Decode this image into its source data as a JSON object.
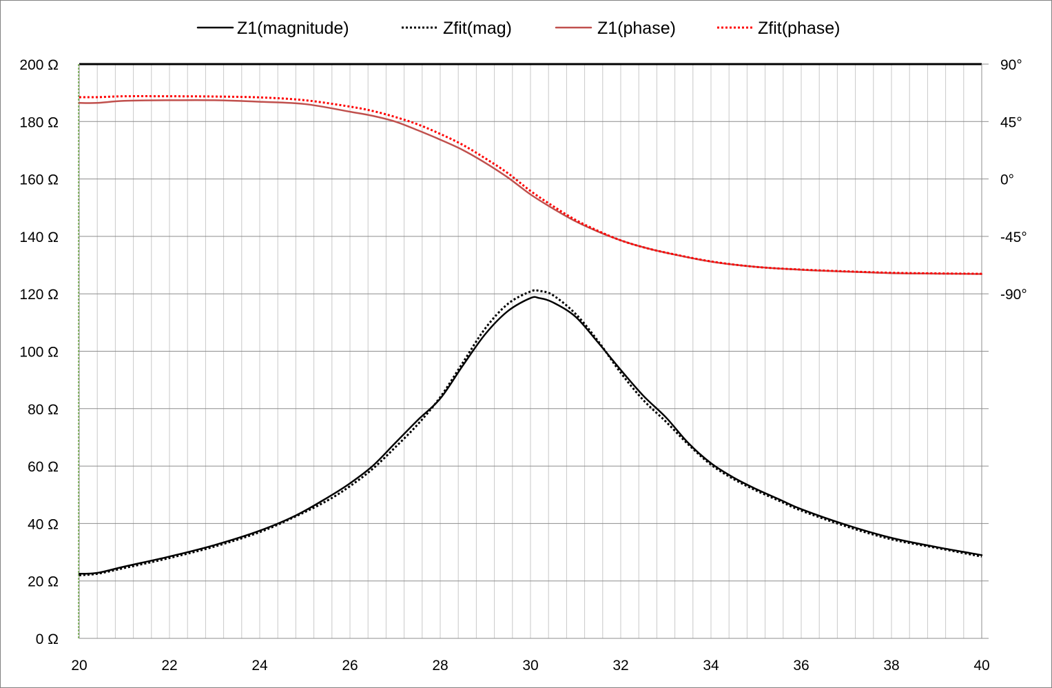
{
  "chart_data": {
    "type": "line",
    "title": "",
    "xlabel": "",
    "ylabel": "",
    "y2label": "",
    "xlim": [
      20,
      40
    ],
    "ylim": [
      0,
      200
    ],
    "y2lim": [
      -90,
      90
    ],
    "grid": true,
    "legend_position": "top",
    "x_ticks": [
      20,
      22,
      24,
      26,
      28,
      30,
      32,
      34,
      36,
      38,
      40
    ],
    "y_ticks": [
      0,
      20,
      40,
      60,
      80,
      100,
      120,
      140,
      160,
      180,
      200
    ],
    "y_tick_labels": [
      "0 Ω",
      "20 Ω",
      "40 Ω",
      "60 Ω",
      "80 Ω",
      "100 Ω",
      "120 Ω",
      "140 Ω",
      "160 Ω",
      "180 Ω",
      "200 Ω"
    ],
    "y2_ticks": [
      -90,
      -45,
      0,
      45,
      90
    ],
    "y2_tick_labels": [
      "-90°",
      "-45°",
      "0°",
      "45°",
      "90°"
    ],
    "series": [
      {
        "name": "Z1(magnitude)",
        "axis": "left",
        "color": "#000000",
        "style": "solid",
        "x": [
          20,
          20.4,
          21,
          22,
          23,
          24,
          24.8,
          25.5,
          26,
          26.5,
          27,
          27.5,
          28,
          28.5,
          29,
          29.5,
          30,
          30.2,
          30.5,
          31,
          31.5,
          32,
          32.5,
          33,
          33.5,
          34,
          34.5,
          35,
          35.5,
          36,
          37,
          38,
          39,
          40
        ],
        "y": [
          22.5,
          22.8,
          25,
          28.5,
          32.5,
          37.5,
          42.8,
          49,
          54,
          60,
          68,
          76,
          83.5,
          95,
          106,
          114,
          118.5,
          118.5,
          117,
          112,
          103,
          93.5,
          84.5,
          77,
          68,
          61,
          56,
          52,
          48.5,
          45,
          39.5,
          35,
          31.8,
          29
        ]
      },
      {
        "name": "Zfit(mag)",
        "axis": "left",
        "color": "#000000",
        "style": "dotted",
        "x": [
          20,
          20.4,
          21,
          22,
          23,
          24,
          24.8,
          25.5,
          26,
          26.5,
          27,
          27.5,
          28,
          28.5,
          29,
          29.5,
          30,
          30.2,
          30.5,
          31,
          31.5,
          32,
          32.5,
          33,
          33.5,
          34,
          34.5,
          35,
          35.5,
          36,
          37,
          38,
          39,
          40
        ],
        "y": [
          22,
          22.5,
          24.5,
          28,
          32,
          37,
          42.5,
          48,
          53,
          59,
          66.5,
          74.5,
          84,
          96,
          108,
          116.5,
          120.8,
          121,
          119.5,
          113,
          103.5,
          92.5,
          83,
          75.5,
          67.5,
          60.5,
          55.5,
          51.5,
          48,
          44.5,
          39,
          34.5,
          31.5,
          28.5
        ]
      },
      {
        "name": "Z1(phase)",
        "axis": "right",
        "color": "#c0504d",
        "style": "solid",
        "x": [
          20,
          20.4,
          21,
          22,
          23,
          24,
          25,
          26,
          26.5,
          27,
          27.5,
          28,
          28.5,
          29,
          29.5,
          30,
          30.5,
          31,
          31.5,
          32,
          32.5,
          33,
          34,
          35,
          36,
          37,
          38,
          39,
          40
        ],
        "y": [
          59.6,
          59.6,
          61.2,
          61.7,
          61.7,
          60.5,
          58.7,
          52.7,
          49.5,
          45,
          38.2,
          30.8,
          22.7,
          12.6,
          1.1,
          -12.1,
          -23.2,
          -33.2,
          -41.3,
          -48.1,
          -53.5,
          -57.8,
          -64.8,
          -68.9,
          -71.2,
          -72.6,
          -73.8,
          -74.2,
          -74.5
        ]
      },
      {
        "name": "Zfit(phase)",
        "axis": "right",
        "color": "#ff0000",
        "style": "dotted",
        "x": [
          20,
          20.4,
          21,
          22,
          23,
          24,
          25,
          26,
          26.5,
          27,
          27.5,
          28,
          28.5,
          29,
          29.5,
          30,
          30.5,
          31,
          31.5,
          32,
          32.5,
          33,
          34,
          35,
          36,
          37,
          38,
          39,
          40
        ],
        "y": [
          64.1,
          64.1,
          64.8,
          64.8,
          64.6,
          63.9,
          61.7,
          56.7,
          53.3,
          48.6,
          42.8,
          35.3,
          26.7,
          16.1,
          4.5,
          -9.4,
          -21.3,
          -32.1,
          -40.7,
          -48.1,
          -53.5,
          -57.7,
          -64.6,
          -68.9,
          -71.0,
          -72.4,
          -73.5,
          -74.0,
          -74.3
        ]
      }
    ]
  }
}
